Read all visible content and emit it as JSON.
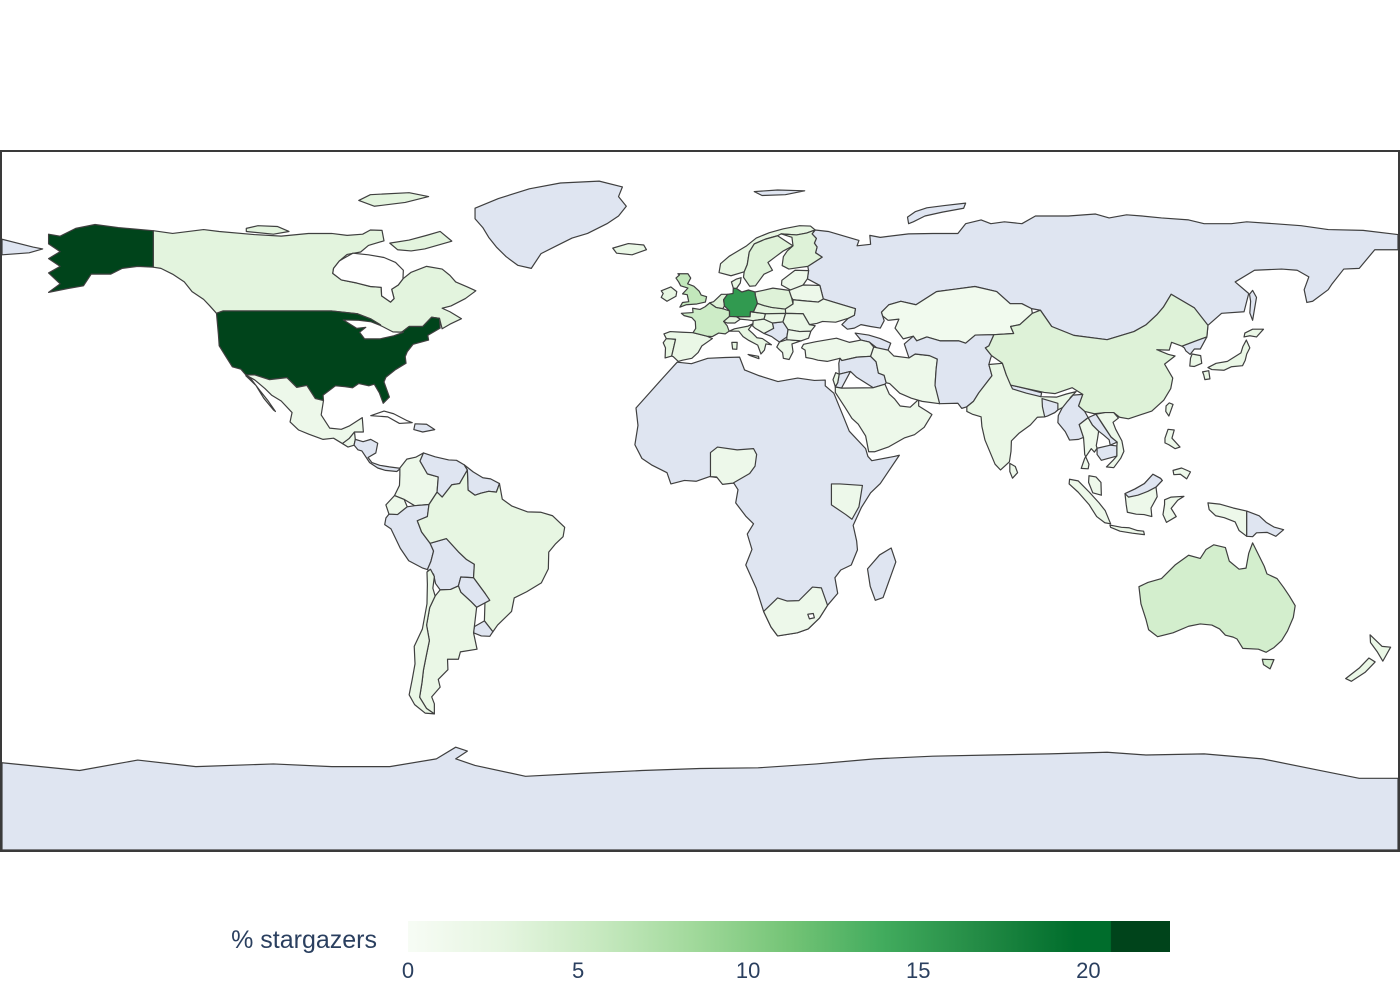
{
  "chart_data": {
    "type": "heatmap",
    "subtype": "choropleth-world-map",
    "title": "",
    "value_label": "% stargazers",
    "projection": "equirectangular",
    "colorbar": {
      "title": "% stargazers",
      "orientation": "horizontal",
      "tick_values": [
        0,
        5,
        10,
        15,
        20
      ],
      "tick_labels": [
        "0",
        "5",
        "10",
        "15",
        "20"
      ],
      "cmin": 0,
      "cmax": 22.4
    },
    "colorscale": {
      "name": "Greens",
      "stops": [
        [
          0,
          "#f7fcf5"
        ],
        [
          0.125,
          "#e5f5e0"
        ],
        [
          0.25,
          "#c7e9c0"
        ],
        [
          0.375,
          "#a1d99b"
        ],
        [
          0.5,
          "#74c476"
        ],
        [
          0.625,
          "#41ab5d"
        ],
        [
          0.75,
          "#238b45"
        ],
        [
          0.875,
          "#006d2c"
        ],
        [
          1,
          "#00441b"
        ]
      ],
      "over_color": "#00441b",
      "over_threshold_fraction": 0.923
    },
    "colors": {
      "ocean": "#ffffff",
      "no_data": "#dfe5f1",
      "border": "#3f3f3f",
      "frame": "#3a3a3a",
      "text": "#2a3f5f"
    },
    "countries": [
      {
        "name": "United States",
        "value": 22.4
      },
      {
        "name": "Germany",
        "value": 15.5
      },
      {
        "name": "United Kingdom",
        "value": 6
      },
      {
        "name": "France",
        "value": 5
      },
      {
        "name": "Australia",
        "value": 4.5
      },
      {
        "name": "Netherlands",
        "value": 3.5
      },
      {
        "name": "Poland",
        "value": 3.5
      },
      {
        "name": "Sweden",
        "value": 3.5
      },
      {
        "name": "Finland",
        "value": 3.5
      },
      {
        "name": "China",
        "value": 3.5
      },
      {
        "name": "Switzerland",
        "value": 3
      },
      {
        "name": "Canada",
        "value": 3
      },
      {
        "name": "Czechia",
        "value": 3
      },
      {
        "name": "Austria",
        "value": 2.5
      },
      {
        "name": "Norway",
        "value": 2.5
      },
      {
        "name": "Denmark",
        "value": 2.5
      },
      {
        "name": "Ireland",
        "value": 2.5
      },
      {
        "name": "Italy",
        "value": 2.5
      },
      {
        "name": "Brazil",
        "value": 2.5
      },
      {
        "name": "Portugal",
        "value": 2.5
      },
      {
        "name": "Ukraine",
        "value": 2
      },
      {
        "name": "Spain",
        "value": 2
      },
      {
        "name": "Japan",
        "value": 2
      },
      {
        "name": "South Korea",
        "value": 2
      },
      {
        "name": "Taiwan",
        "value": 2
      },
      {
        "name": "India",
        "value": 2
      },
      {
        "name": "New Zealand",
        "value": 2
      },
      {
        "name": "Iceland",
        "value": 2
      },
      {
        "name": "Argentina",
        "value": 2
      },
      {
        "name": "Chile",
        "value": 2
      },
      {
        "name": "Hungary",
        "value": 2
      },
      {
        "name": "Romania",
        "value": 2
      },
      {
        "name": "Israel",
        "value": 2
      },
      {
        "name": "Croatia & Slovenia",
        "value": 2
      },
      {
        "name": "Mexico",
        "value": 1.5
      },
      {
        "name": "Guatemala",
        "value": 1.5
      },
      {
        "name": "Colombia",
        "value": 1.5
      },
      {
        "name": "Ecuador",
        "value": 1.5
      },
      {
        "name": "Greece",
        "value": 1.5
      },
      {
        "name": "Bulgaria",
        "value": 1.5
      },
      {
        "name": "Belarus",
        "value": 1.5
      },
      {
        "name": "Baltic States",
        "value": 1.5
      },
      {
        "name": "Turkey",
        "value": 1.5
      },
      {
        "name": "Saudi Arabia",
        "value": 1.5
      },
      {
        "name": "Iran",
        "value": 1.5
      },
      {
        "name": "Thailand",
        "value": 1.5
      },
      {
        "name": "Vietnam",
        "value": 1.5
      },
      {
        "name": "Malaysia",
        "value": 1.5
      },
      {
        "name": "Indonesia",
        "value": 1.5
      },
      {
        "name": "Philippines",
        "value": 1.5
      },
      {
        "name": "Sri Lanka",
        "value": 1.5
      },
      {
        "name": "Nigeria",
        "value": 1.5
      },
      {
        "name": "Kenya",
        "value": 1.5
      },
      {
        "name": "South Africa",
        "value": 1.5
      },
      {
        "name": "Kazakhstan",
        "value": 1
      }
    ],
    "no_data_regions": [
      "Russia & Mongolia",
      "Greenland",
      "Svalbard",
      "Africa (most countries)",
      "Madagascar",
      "Peru",
      "Bolivia",
      "Venezuela",
      "Paraguay",
      "Uruguay",
      "Guyanas",
      "Central America",
      "Hispaniola",
      "Syria & Iraq",
      "Jordan",
      "Caucasus",
      "Central Asia & Af-Pak",
      "Nepal",
      "Bangladesh",
      "Myanmar",
      "Laos",
      "Cambodia",
      "North Korea",
      "Papua New Guinea",
      "North Borneo",
      "Antarctica",
      "Chukotka"
    ]
  }
}
